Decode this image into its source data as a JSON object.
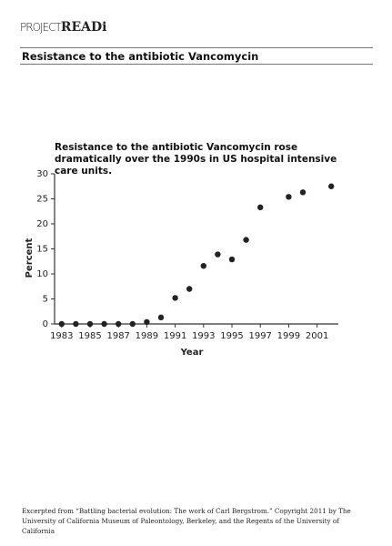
{
  "header": {
    "logo_project": "PROJECT",
    "logo_read": "READi",
    "title": "Resistance to the antibiotic Vancomycin"
  },
  "chart_data": {
    "type": "scatter",
    "title": "Resistance to the antibiotic Vancomycin rose dramatically over the 1990s in US hospital intensive care units.",
    "x_label": "Year",
    "y_label": "Percent",
    "x": [
      1983,
      1984,
      1985,
      1986,
      1987,
      1988,
      1989,
      1990,
      1991,
      1992,
      1993,
      1994,
      1995,
      1996,
      1997,
      1999,
      2000,
      2002
    ],
    "values": [
      0,
      0,
      0,
      0,
      0,
      0,
      0.4,
      1.3,
      5.2,
      7,
      11.6,
      13.9,
      12.9,
      16.8,
      23.3,
      25.4,
      26.3,
      27.5
    ],
    "color": "#222222",
    "xlim": [
      1982.5,
      2002.5
    ],
    "xticks": [
      1983,
      1985,
      1987,
      1989,
      1991,
      1993,
      1995,
      1997,
      1999,
      2001
    ],
    "ylim": [
      0,
      30
    ],
    "yticks": [
      0,
      5,
      10,
      15,
      20,
      25,
      30
    ],
    "grid": false
  },
  "footer": {
    "text": "Excerpted from “Battling bacterial evolution: The work of Carl Bergstrom.”  Copyright 2011 by The University of California Museum of Paleontology, Berkeley, and the Regents of the University of California"
  }
}
